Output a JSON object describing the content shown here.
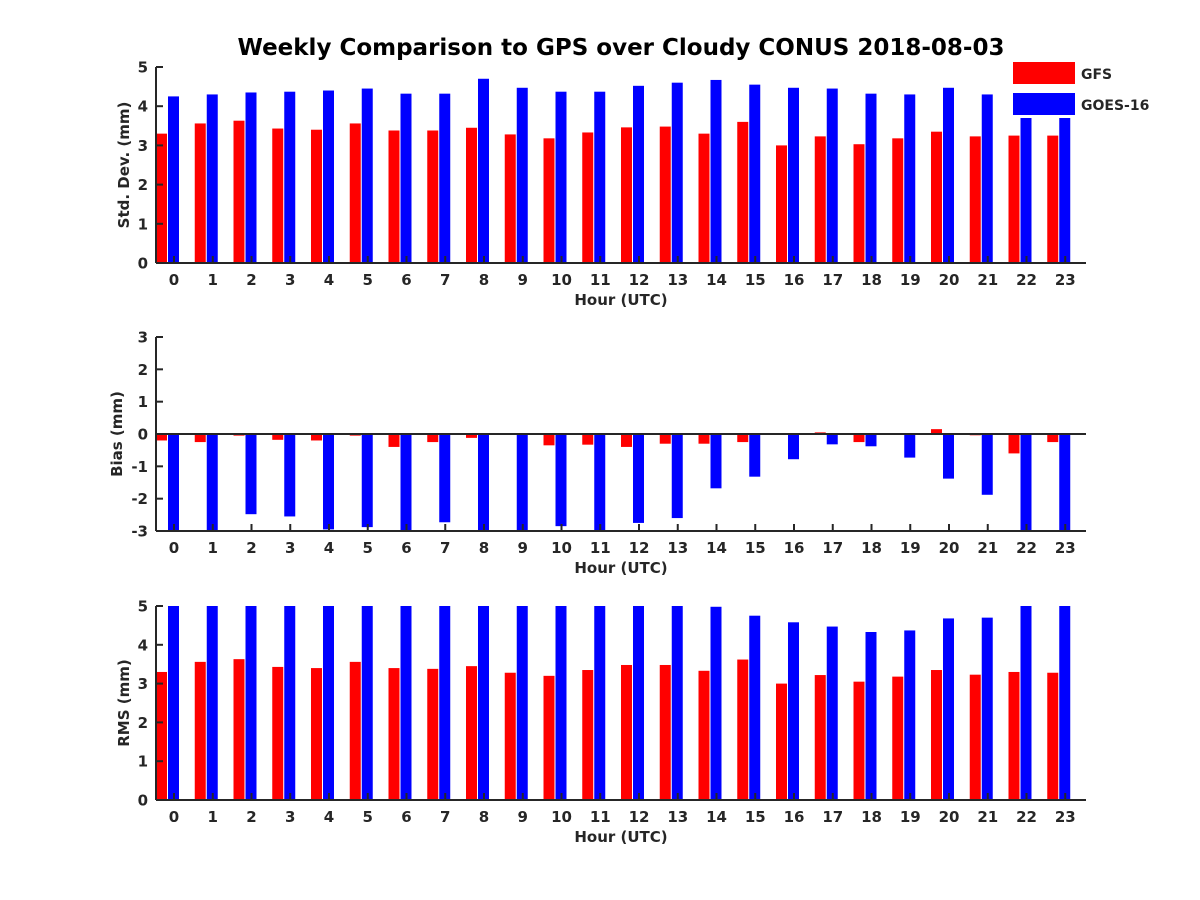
{
  "figure": {
    "title": "Weekly Comparison to GPS over Cloudy CONUS 2018-08-03"
  },
  "legend": [
    {
      "name": "GFS",
      "color": "#ff0000"
    },
    {
      "name": "GOES-16",
      "color": "#0000ff"
    }
  ],
  "chart_data": [
    {
      "type": "bar",
      "ylabel": "Std. Dev. (mm)",
      "xlabel": "Hour (UTC)",
      "ylim": [
        0,
        5
      ],
      "yticks": [
        0,
        1,
        2,
        3,
        4,
        5
      ],
      "categories": [
        "0",
        "1",
        "2",
        "3",
        "4",
        "5",
        "6",
        "7",
        "8",
        "9",
        "10",
        "11",
        "12",
        "13",
        "14",
        "15",
        "16",
        "17",
        "18",
        "19",
        "20",
        "21",
        "22",
        "23"
      ],
      "series": [
        {
          "name": "GFS",
          "color": "#ff0000",
          "values": [
            3.3,
            3.56,
            3.63,
            3.43,
            3.4,
            3.56,
            3.38,
            3.38,
            3.45,
            3.28,
            3.18,
            3.33,
            3.46,
            3.48,
            3.3,
            3.6,
            3.0,
            3.23,
            3.03,
            3.18,
            3.35,
            3.23,
            3.25,
            3.25
          ]
        },
        {
          "name": "GOES-16",
          "color": "#0000ff",
          "values": [
            4.25,
            4.3,
            4.35,
            4.37,
            4.4,
            4.45,
            4.32,
            4.32,
            4.7,
            4.47,
            4.37,
            4.37,
            4.52,
            4.6,
            4.67,
            4.55,
            4.47,
            4.45,
            4.32,
            4.3,
            4.47,
            4.3,
            4.65,
            3.9
          ]
        }
      ]
    },
    {
      "type": "bar",
      "ylabel": "Bias (mm)",
      "xlabel": "Hour (UTC)",
      "ylim": [
        -3,
        3
      ],
      "yticks": [
        -3,
        -2,
        -1,
        0,
        1,
        2,
        3
      ],
      "categories": [
        "0",
        "1",
        "2",
        "3",
        "4",
        "5",
        "6",
        "7",
        "8",
        "9",
        "10",
        "11",
        "12",
        "13",
        "14",
        "15",
        "16",
        "17",
        "18",
        "19",
        "20",
        "21",
        "22",
        "23"
      ],
      "series": [
        {
          "name": "GFS",
          "color": "#ff0000",
          "values": [
            -0.2,
            -0.25,
            -0.05,
            -0.18,
            -0.2,
            -0.05,
            -0.4,
            -0.25,
            -0.12,
            -0.02,
            -0.35,
            -0.33,
            -0.4,
            -0.3,
            -0.3,
            -0.25,
            -0.02,
            0.05,
            -0.25,
            -0.02,
            0.15,
            -0.04,
            -0.6,
            -0.25
          ]
        },
        {
          "name": "GOES-16",
          "color": "#0000ff",
          "values": [
            -3.0,
            -3.0,
            -2.48,
            -2.55,
            -2.95,
            -2.88,
            -3.0,
            -2.73,
            -3.0,
            -3.0,
            -2.85,
            -3.0,
            -2.75,
            -2.6,
            -1.68,
            -1.32,
            -0.78,
            -0.32,
            -0.38,
            -0.73,
            -1.38,
            -1.88,
            -3.0,
            -3.0
          ]
        }
      ]
    },
    {
      "type": "bar",
      "ylabel": "RMS (mm)",
      "xlabel": "Hour (UTC)",
      "ylim": [
        0,
        5
      ],
      "yticks": [
        0,
        1,
        2,
        3,
        4,
        5
      ],
      "categories": [
        "0",
        "1",
        "2",
        "3",
        "4",
        "5",
        "6",
        "7",
        "8",
        "9",
        "10",
        "11",
        "12",
        "13",
        "14",
        "15",
        "16",
        "17",
        "18",
        "19",
        "20",
        "21",
        "22",
        "23"
      ],
      "series": [
        {
          "name": "GFS",
          "color": "#ff0000",
          "values": [
            3.3,
            3.56,
            3.63,
            3.43,
            3.4,
            3.56,
            3.4,
            3.38,
            3.45,
            3.28,
            3.2,
            3.35,
            3.48,
            3.48,
            3.33,
            3.62,
            3.0,
            3.22,
            3.05,
            3.18,
            3.35,
            3.23,
            3.3,
            3.28
          ]
        },
        {
          "name": "GOES-16",
          "color": "#0000ff",
          "values": [
            5.0,
            5.0,
            5.0,
            5.0,
            5.0,
            5.0,
            5.0,
            5.0,
            5.0,
            5.0,
            5.0,
            5.0,
            5.0,
            5.0,
            4.98,
            4.75,
            4.58,
            4.47,
            4.33,
            4.37,
            4.68,
            4.7,
            5.0,
            5.0
          ]
        }
      ]
    }
  ]
}
